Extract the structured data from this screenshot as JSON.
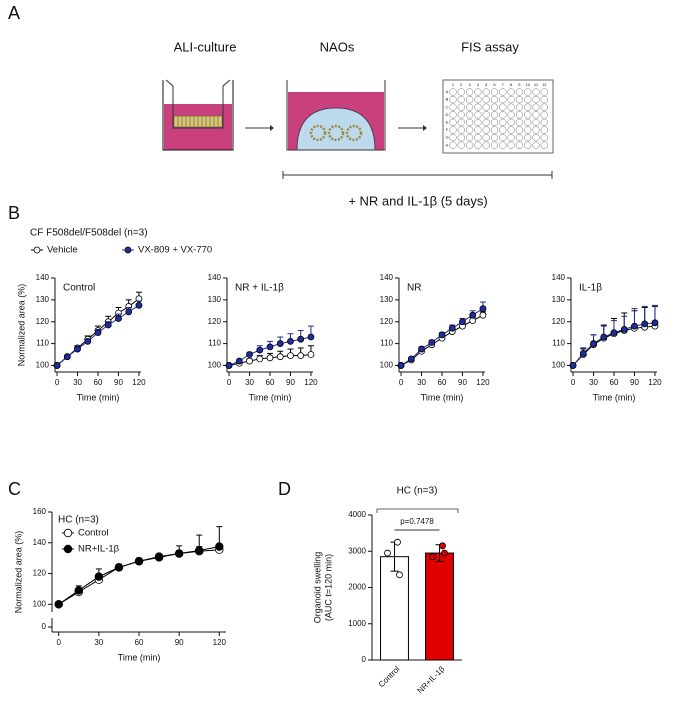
{
  "panel_labels": [
    "A",
    "B",
    "C",
    "D"
  ],
  "schematic": {
    "steps": [
      "ALI-culture",
      "NAOs",
      "FIS assay"
    ],
    "treatment": "+ NR and IL-1β (5 days)",
    "plate_columns": [
      "1",
      "2",
      "3",
      "4",
      "5",
      "6",
      "7",
      "8",
      "9",
      "10",
      "11",
      "12"
    ],
    "plate_rows": [
      "A",
      "B",
      "C",
      "D",
      "E",
      "F",
      "G",
      "H"
    ]
  },
  "panel_b": {
    "title": "CF F508del/F508del (n=3)"
  },
  "chart_data": [
    {
      "type": "line",
      "annotation": "Control",
      "ylabel": "Normalized area (%)",
      "xlabel": "Time (min)",
      "x": [
        0,
        15,
        30,
        45,
        60,
        75,
        90,
        105,
        120
      ],
      "xlim": [
        -3,
        123
      ],
      "xticks": [
        0,
        30,
        60,
        90,
        120
      ],
      "ylim": [
        97,
        140
      ],
      "yticks": [
        100,
        110,
        120,
        130,
        140
      ],
      "series": [
        {
          "name": "Vehicle",
          "color": "#ffffff",
          "line_color": "#000000",
          "values": [
            100,
            104,
            108,
            112,
            116,
            120,
            124,
            127,
            130.5
          ],
          "errors": [
            0,
            0.5,
            1,
            1.5,
            2,
            2.5,
            2.5,
            3,
            3
          ]
        },
        {
          "name": "VX-809 + VX-770",
          "color": "#1f2d9e",
          "line_color": "#1f2d8a",
          "values": [
            100,
            104,
            107.5,
            111,
            115,
            118.5,
            121.5,
            124.5,
            127.5
          ],
          "errors": [
            0,
            0.5,
            1,
            1,
            1.5,
            1.5,
            2,
            2,
            2
          ]
        }
      ]
    },
    {
      "type": "line",
      "annotation": "NR + IL-1β",
      "xlabel": "Time (min)",
      "x": [
        0,
        15,
        30,
        45,
        60,
        75,
        90,
        105,
        120
      ],
      "xlim": [
        -3,
        123
      ],
      "xticks": [
        0,
        30,
        60,
        90,
        120
      ],
      "ylim": [
        97,
        140
      ],
      "yticks": [
        100,
        110,
        120,
        130,
        140
      ],
      "series": [
        {
          "color": "#ffffff",
          "line_color": "#000000",
          "values": [
            100,
            101,
            102,
            103,
            103.5,
            104,
            104.5,
            104.5,
            105
          ],
          "errors": [
            0,
            0.5,
            1,
            1.5,
            2,
            2.5,
            3,
            3.5,
            4
          ]
        },
        {
          "color": "#1f2d9e",
          "line_color": "#1f2d8a",
          "values": [
            100,
            102,
            105,
            107,
            108.5,
            110,
            111,
            112,
            113
          ],
          "errors": [
            0,
            0.5,
            1,
            2,
            2.5,
            3,
            3.5,
            4,
            5
          ]
        }
      ]
    },
    {
      "type": "line",
      "annotation": "NR",
      "xlabel": "Time (min)",
      "x": [
        0,
        15,
        30,
        45,
        60,
        75,
        90,
        105,
        120
      ],
      "xlim": [
        -3,
        123
      ],
      "xticks": [
        0,
        30,
        60,
        90,
        120
      ],
      "ylim": [
        97,
        140
      ],
      "yticks": [
        100,
        110,
        120,
        130,
        140
      ],
      "series": [
        {
          "color": "#ffffff",
          "line_color": "#000000",
          "values": [
            100,
            102.5,
            106.5,
            109.5,
            112.5,
            115.5,
            118,
            120.5,
            123
          ],
          "errors": [
            0,
            0.5,
            0.5,
            1,
            1,
            1,
            1,
            1.5,
            1.5
          ]
        },
        {
          "color": "#1f2d9e",
          "line_color": "#1f2d8a",
          "values": [
            100,
            103,
            107.5,
            110.5,
            114,
            117,
            120,
            123,
            126
          ],
          "errors": [
            0,
            0.5,
            1,
            1,
            1,
            1.5,
            1.5,
            2,
            3
          ]
        }
      ]
    },
    {
      "type": "line",
      "annotation": "IL-1β",
      "xlabel": "Time (min)",
      "x": [
        0,
        15,
        30,
        45,
        60,
        75,
        90,
        105,
        120
      ],
      "xlim": [
        -3,
        123
      ],
      "xticks": [
        0,
        30,
        60,
        90,
        120
      ],
      "ylim": [
        97,
        140
      ],
      "yticks": [
        100,
        110,
        120,
        130,
        140
      ],
      "series": [
        {
          "color": "#ffffff",
          "line_color": "#000000",
          "values": [
            100,
            105,
            109.5,
            112.5,
            114.5,
            116,
            117,
            117.5,
            118
          ],
          "errors": [
            0,
            3,
            4.5,
            6,
            7,
            8,
            8,
            9,
            9
          ]
        },
        {
          "color": "#1f2d9e",
          "line_color": "#1f2d8a",
          "values": [
            100,
            105.5,
            110,
            113,
            115,
            116.5,
            118,
            119,
            119.5
          ],
          "errors": [
            0,
            2,
            4,
            5,
            5.5,
            6,
            8,
            8,
            8
          ]
        }
      ]
    },
    {
      "type": "line",
      "title": "HC (n=3)",
      "ylabel": "Normalized area  (%)",
      "xlabel": "Time (min)",
      "axis_break": true,
      "x": [
        0,
        15,
        30,
        45,
        60,
        75,
        90,
        105,
        120
      ],
      "xlim": [
        -5,
        125
      ],
      "xticks": [
        0,
        30,
        60,
        90,
        120
      ],
      "ylim": [
        95,
        160
      ],
      "yticks": [
        0,
        100,
        120,
        140,
        160
      ],
      "series": [
        {
          "name": "Control",
          "color": "#ffffff",
          "line_color": "#000000",
          "values": [
            100,
            108,
            116,
            124,
            128,
            131,
            133,
            134.5,
            135.5
          ],
          "errors": [
            0,
            1.5,
            2,
            1.5,
            1.5,
            1.5,
            2,
            3,
            3
          ]
        },
        {
          "name": "NR+IL-1β",
          "color": "#000000",
          "line_color": "#000000",
          "values": [
            100,
            109,
            118,
            124,
            128,
            130.5,
            133,
            135,
            137.5
          ],
          "errors": [
            0,
            3,
            5,
            2,
            2,
            2,
            5,
            10,
            13
          ]
        }
      ]
    },
    {
      "type": "bar",
      "title": "HC (n=3)",
      "ylabel": [
        "Organoid swelling",
        "(AUC t=120 min)"
      ],
      "annotation": "p=0.7478",
      "categories": [
        "Control",
        "NR+IL-1β"
      ],
      "values": [
        2850,
        2950
      ],
      "errors": [
        400,
        230
      ],
      "colors": [
        "#ffffff",
        "#e00000"
      ],
      "points": [
        [
          3250,
          2950,
          2350
        ],
        [
          3150,
          2850,
          2950
        ]
      ],
      "ylim": [
        0,
        4000
      ],
      "yticks": [
        0,
        1000,
        2000,
        3000,
        4000
      ]
    }
  ]
}
